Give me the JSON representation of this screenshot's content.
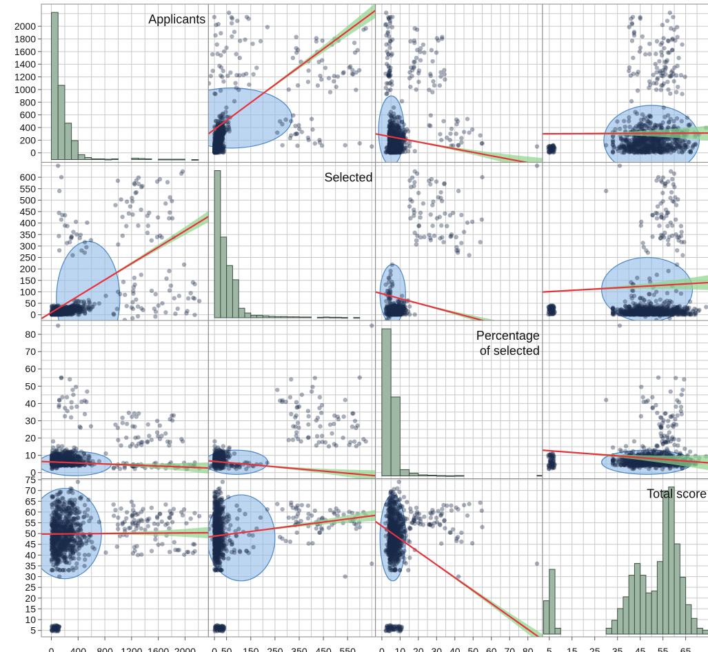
{
  "chart_data": {
    "type": "scatter-matrix",
    "variables": [
      "Applicants",
      "Selected",
      "Percentage of selected",
      "Total score"
    ],
    "diagonal_labels": [
      {
        "lines": [
          "Applicants"
        ]
      },
      {
        "lines": [
          "Selected"
        ]
      },
      {
        "lines": [
          "Percentage",
          "of selected"
        ]
      },
      {
        "lines": [
          "Total score"
        ]
      }
    ],
    "axes": {
      "applicants": {
        "range": [
          -150,
          2350
        ],
        "y_ticks": [
          0,
          200,
          400,
          600,
          800,
          1000,
          1200,
          1400,
          1600,
          1800,
          2000
        ],
        "x_ticks": [
          0,
          400,
          800,
          1200,
          1600,
          2000
        ],
        "grid": [
          0,
          200,
          400,
          600,
          800,
          1000,
          1200,
          1400,
          1600,
          1800,
          2000,
          2200
        ]
      },
      "selected": {
        "range": [
          -25,
          665
        ],
        "y_ticks": [
          0,
          50,
          100,
          150,
          200,
          250,
          300,
          350,
          400,
          450,
          500,
          550,
          600
        ],
        "x_ticks": [
          0,
          50,
          150,
          250,
          350,
          450,
          550
        ],
        "grid": [
          0,
          50,
          100,
          150,
          200,
          250,
          300,
          350,
          400,
          450,
          500,
          550,
          600,
          650
        ]
      },
      "percentage": {
        "range": [
          -3.5,
          88
        ],
        "y_ticks": [
          0,
          10,
          20,
          30,
          40,
          50,
          60,
          70,
          80
        ],
        "x_ticks": [
          0,
          10,
          20,
          30,
          40,
          50,
          60,
          70,
          80
        ],
        "grid": [
          0,
          5,
          10,
          15,
          20,
          25,
          30,
          35,
          40,
          45,
          50,
          55,
          60,
          65,
          70,
          75,
          80,
          85
        ]
      },
      "total_score": {
        "range": [
          2,
          75.5
        ],
        "y_ticks": [
          5,
          10,
          15,
          20,
          25,
          30,
          35,
          40,
          45,
          50,
          55,
          60,
          65,
          70,
          75
        ],
        "x_ticks": [
          5,
          15,
          25,
          35,
          45,
          55,
          65
        ],
        "grid": [
          5,
          10,
          15,
          20,
          25,
          30,
          35,
          40,
          45,
          50,
          55,
          60,
          65,
          70,
          75
        ]
      }
    },
    "histograms": [
      {
        "variable": "Applicants",
        "bins": [
          [
            0,
            100,
            2100
          ],
          [
            100,
            200,
            1060
          ],
          [
            200,
            300,
            520
          ],
          [
            300,
            400,
            270
          ],
          [
            400,
            500,
            70
          ],
          [
            500,
            600,
            30
          ],
          [
            600,
            700,
            10
          ],
          [
            700,
            800,
            10
          ],
          [
            800,
            900,
            5
          ],
          [
            900,
            1000,
            10
          ],
          [
            1200,
            1300,
            20
          ],
          [
            1300,
            1400,
            15
          ],
          [
            1400,
            1500,
            10
          ],
          [
            1600,
            1700,
            5
          ],
          [
            1700,
            1800,
            5
          ],
          [
            1800,
            1900,
            5
          ],
          [
            1900,
            2000,
            5
          ],
          [
            2100,
            2200,
            -10
          ]
        ]
      },
      {
        "variable": "Selected",
        "bins": [
          [
            0,
            25,
            620
          ],
          [
            25,
            50,
            340
          ],
          [
            50,
            75,
            220
          ],
          [
            75,
            100,
            160
          ],
          [
            100,
            125,
            40
          ],
          [
            125,
            150,
            20
          ],
          [
            150,
            175,
            10
          ],
          [
            175,
            200,
            10
          ],
          [
            200,
            225,
            8
          ],
          [
            225,
            250,
            6
          ],
          [
            250,
            275,
            5
          ],
          [
            275,
            300,
            5
          ],
          [
            300,
            325,
            4
          ],
          [
            325,
            350,
            4
          ],
          [
            350,
            375,
            3
          ],
          [
            375,
            400,
            3
          ],
          [
            425,
            450,
            2
          ],
          [
            450,
            475,
            3
          ],
          [
            475,
            500,
            2
          ],
          [
            500,
            525,
            2
          ],
          [
            525,
            550,
            1
          ],
          [
            575,
            600,
            1
          ]
        ]
      },
      {
        "variable": "Percentage of selected",
        "bins": [
          [
            0,
            5,
            82
          ],
          [
            5,
            10,
            44
          ],
          [
            10,
            15,
            3.5
          ],
          [
            15,
            20,
            1.5
          ],
          [
            20,
            25,
            0.6
          ],
          [
            25,
            30,
            0.4
          ],
          [
            30,
            35,
            0.2
          ],
          [
            35,
            40,
            0.1
          ],
          [
            40,
            45,
            0.2
          ],
          [
            85,
            90,
            0.3
          ]
        ]
      },
      {
        "variable": "Total score",
        "bins": [
          [
            2.5,
            5,
            17
          ],
          [
            5,
            7.5,
            33
          ],
          [
            7.5,
            10,
            3
          ],
          [
            30,
            32.5,
            3
          ],
          [
            32.5,
            35,
            7
          ],
          [
            35,
            37.5,
            13
          ],
          [
            37.5,
            40,
            19
          ],
          [
            40,
            42.5,
            30
          ],
          [
            42.5,
            45,
            36
          ],
          [
            45,
            47.5,
            30
          ],
          [
            47.5,
            50,
            21
          ],
          [
            50,
            52.5,
            22
          ],
          [
            52.5,
            55,
            37
          ],
          [
            55,
            57.5,
            73
          ],
          [
            57.5,
            60,
            75
          ],
          [
            60,
            62.5,
            46
          ],
          [
            62.5,
            65,
            29
          ],
          [
            65,
            67.5,
            15
          ],
          [
            67.5,
            70,
            8
          ],
          [
            70,
            72.5,
            3
          ],
          [
            72.5,
            75,
            2
          ]
        ]
      }
    ],
    "fit_lines": {
      "applicants_selected": {
        "slope": 0.178,
        "intercept": 10
      },
      "applicants_percentage": {
        "slope": -0.0015,
        "intercept": 6.2
      },
      "applicants_score": {
        "slope": 0.00025,
        "intercept": 49.8
      },
      "selected_percentage": {
        "slope": -0.0125,
        "intercept": 6.5
      },
      "selected_score": {
        "slope": 0.0145,
        "intercept": 48.8
      },
      "percentage_score": {
        "slope": -0.6,
        "intercept": 53.5
      }
    },
    "colors": {
      "points": "#1b2a4a",
      "ellipse_fill": "#8fb9e6",
      "ellipse_stroke": "#4a86c8",
      "fit_line": "#e8333d",
      "confidence_band": "#8fd48a",
      "histogram_fill": "#9fb8a5",
      "histogram_stroke": "#3c4f42",
      "grid": "#c9c9c9",
      "frame": "#8a8a8a"
    },
    "legend": "none",
    "grid": true
  }
}
